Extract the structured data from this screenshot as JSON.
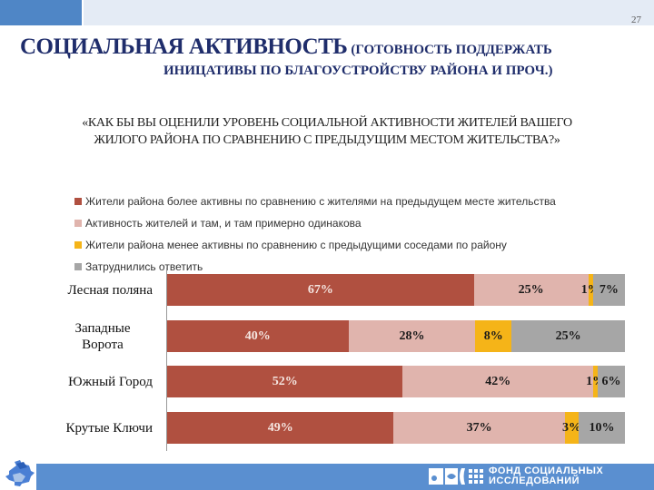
{
  "page": {
    "number": "27",
    "title_main": "СОЦИАЛЬНАЯ АКТИВНОСТЬ",
    "title_sub_line1": "(ГОТОВНОСТЬ ПОДДЕРЖАТЬ",
    "title_sub_line2": "ИНИЦАТИВЫ ПО БЛАГОУСТРОЙСТВУ РАЙОНА И ПРОЧ.)",
    "question_line1": "«КАК БЫ ВЫ ОЦЕНИЛИ УРОВЕНЬ СОЦИАЛЬНОЙ АКТИВНОСТИ ЖИТЕЛЕЙ ВАШЕГО",
    "question_line2": "ЖИЛОГО РАЙОНА ПО СРАВНЕНИЮ С ПРЕДЫДУЩИМ МЕСТОМ ЖИТЕЛЬСТВА?»"
  },
  "footer": {
    "org_line1": "ФОНД СОЦИАЛЬНЫХ",
    "org_line2": "ИССЛЕДОВАНИЙ",
    "left_icon": "puzzle-icon"
  },
  "colors": {
    "series": [
      "#b05040",
      "#e0b4ad",
      "#f5b418",
      "#a6a6a6"
    ],
    "title": "#1f2d6b",
    "band_blue": "#5a8fd0"
  },
  "chart_data": {
    "type": "bar",
    "orientation": "horizontal",
    "stacked": true,
    "title": "«КАК БЫ ВЫ ОЦЕНИЛИ УРОВЕНЬ СОЦИАЛЬНОЙ АКТИВНОСТИ ЖИТЕЛЕЙ ВАШЕГО ЖИЛОГО РАЙОНА ПО СРАВНЕНИЮ С ПРЕДЫДУЩИМ МЕСТОМ ЖИТЕЛЬСТВА?»",
    "xlabel": "",
    "ylabel": "",
    "xlim": [
      0,
      100
    ],
    "grid": false,
    "legend_position": "top",
    "categories": [
      "Лесная поляна",
      "Западные Ворота",
      "Южный Город",
      "Крутые Ключи"
    ],
    "series": [
      {
        "name": "Жители района более активны по сравнению с жителями на предыдущем месте жительства",
        "values": [
          67,
          40,
          52,
          49
        ]
      },
      {
        "name": "Активность жителей и там, и там примерно одинакова",
        "values": [
          25,
          28,
          42,
          37
        ]
      },
      {
        "name": "Жители района менее активны по сравнению с предыдущими соседами по району",
        "values": [
          1,
          8,
          1,
          3
        ]
      },
      {
        "name": "Затруднились ответить",
        "values": [
          7,
          25,
          6,
          10
        ]
      }
    ],
    "labels": [
      [
        "67%",
        "25%",
        "1%",
        "7%"
      ],
      [
        "40%",
        "28%",
        "8%",
        "25%"
      ],
      [
        "52%",
        "42%",
        "1%",
        "6%"
      ],
      [
        "49%",
        "37%",
        "3%",
        "10%"
      ]
    ]
  }
}
